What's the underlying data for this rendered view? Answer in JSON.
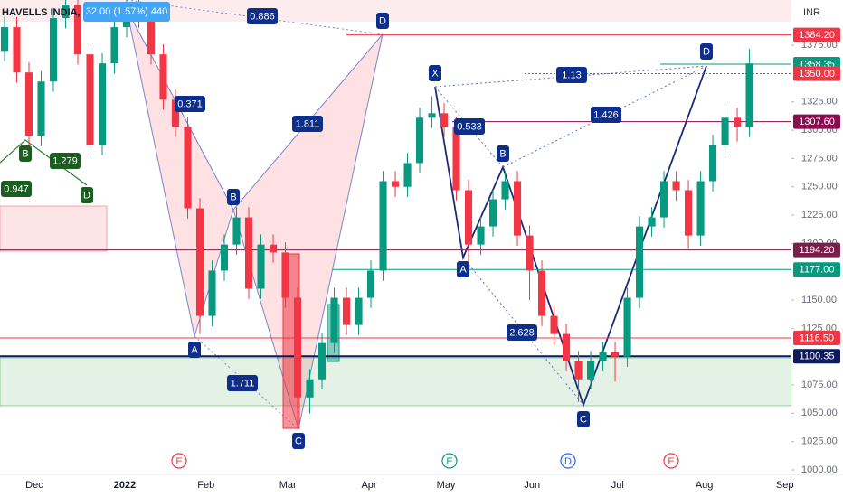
{
  "chart_data": {
    "type": "candlestick",
    "title": "HAVELLS INDIA, 1D, NSE",
    "change": "32.00 (1.57%) 440",
    "currency": "INR",
    "up_color": "#089981",
    "down_color": "#f23645",
    "xlim": [
      -0.37,
      64.44
    ],
    "ylim": [
      996,
      1415
    ],
    "xticks": [
      {
        "value": 2.44,
        "label": "Dec"
      },
      {
        "value": 9.85,
        "label": "2022"
      },
      {
        "value": 16.5,
        "label": "Feb"
      },
      {
        "value": 23.2,
        "label": "Mar"
      },
      {
        "value": 29.85,
        "label": "Apr"
      },
      {
        "value": 36.15,
        "label": "May"
      },
      {
        "value": 43.2,
        "label": "Jun"
      },
      {
        "value": 50.2,
        "label": "Jul"
      },
      {
        "value": 57.3,
        "label": "Aug"
      },
      {
        "value": 63.9,
        "label": "Sep"
      }
    ],
    "yticks": [
      {
        "value": 1000,
        "label": "1000.00"
      },
      {
        "value": 1025,
        "label": "1025.00"
      },
      {
        "value": 1050,
        "label": "1050.00"
      },
      {
        "value": 1075,
        "label": "1075.00"
      },
      {
        "value": 1125,
        "label": "1125.00"
      },
      {
        "value": 1150,
        "label": "1150.00"
      },
      {
        "value": 1200,
        "label": "1200.00"
      },
      {
        "value": 1225,
        "label": "1225.00"
      },
      {
        "value": 1250,
        "label": "1250.00"
      },
      {
        "value": 1275,
        "label": "1275.00"
      },
      {
        "value": 1300,
        "label": "1300.00"
      },
      {
        "value": 1325,
        "label": "1325.00"
      },
      {
        "value": 1375,
        "label": "1375.00"
      }
    ],
    "price_tags": [
      {
        "value": 1384.2,
        "label": "1384.20",
        "color": "#f23645"
      },
      {
        "value": 1358.35,
        "label": "1358.35",
        "color": "#089981"
      },
      {
        "value": 1350,
        "label": "1350.00",
        "color": "#f23645"
      },
      {
        "value": 1307.6,
        "label": "1307.60",
        "color": "#880e4f"
      },
      {
        "value": 1194.2,
        "label": "1194.20",
        "color": "#7b1f4a"
      },
      {
        "value": 1177,
        "label": "1177.00",
        "color": "#089981"
      },
      {
        "value": 1116.5,
        "label": "1116.50",
        "color": "#f23645"
      },
      {
        "value": 1100.35,
        "label": "1100.35",
        "color": "#0d1b5e"
      }
    ],
    "pattern_points": [
      "A",
      "B",
      "C",
      "D",
      "X",
      "A",
      "B",
      "C",
      "D",
      "B",
      "D"
    ],
    "ratios": [
      0.886,
      0.371,
      1.811,
      1.711,
      1.13,
      0.533,
      1.426,
      2.628,
      1.279,
      0.947
    ],
    "events": [
      "E",
      "E",
      "D",
      "E"
    ],
    "ohlc": [
      [
        1370,
        1400,
        1361,
        1391
      ],
      [
        1391,
        1400,
        1342,
        1351
      ],
      [
        1351,
        1360,
        1286,
        1295
      ],
      [
        1295,
        1352,
        1286,
        1343
      ],
      [
        1343,
        1408,
        1334,
        1399
      ],
      [
        1399,
        1415,
        1390,
        1411
      ],
      [
        1411,
        1415,
        1358,
        1367
      ],
      [
        1367,
        1376,
        1278,
        1287
      ],
      [
        1287,
        1368,
        1278,
        1359
      ],
      [
        1359,
        1400,
        1350,
        1391
      ],
      [
        1391,
        1415,
        1382,
        1407
      ],
      [
        1407,
        1415,
        1390,
        1399
      ],
      [
        1399,
        1408,
        1358,
        1367
      ],
      [
        1367,
        1376,
        1318,
        1327
      ],
      [
        1327,
        1336,
        1294,
        1303
      ],
      [
        1303,
        1312,
        1222,
        1231
      ],
      [
        1231,
        1240,
        1120,
        1136
      ],
      [
        1136,
        1185,
        1127,
        1176
      ],
      [
        1176,
        1208,
        1167,
        1199
      ],
      [
        1199,
        1232,
        1190,
        1223
      ],
      [
        1223,
        1232,
        1151,
        1160
      ],
      [
        1160,
        1208,
        1151,
        1199
      ],
      [
        1199,
        1208,
        1183,
        1192
      ],
      [
        1192,
        1201,
        1143,
        1152
      ],
      [
        1152,
        1161,
        1040,
        1064
      ],
      [
        1064,
        1089,
        1050,
        1080
      ],
      [
        1080,
        1121,
        1071,
        1112
      ],
      [
        1112,
        1161,
        1103,
        1152
      ],
      [
        1152,
        1161,
        1119,
        1128
      ],
      [
        1128,
        1161,
        1119,
        1152
      ],
      [
        1152,
        1185,
        1143,
        1176
      ],
      [
        1176,
        1264,
        1167,
        1255
      ],
      [
        1255,
        1264,
        1241,
        1250
      ],
      [
        1250,
        1280,
        1241,
        1271
      ],
      [
        1271,
        1320,
        1262,
        1311
      ],
      [
        1311,
        1330,
        1302,
        1315
      ],
      [
        1315,
        1324,
        1294,
        1303
      ],
      [
        1303,
        1312,
        1238,
        1247
      ],
      [
        1247,
        1256,
        1180,
        1199
      ],
      [
        1199,
        1224,
        1190,
        1215
      ],
      [
        1215,
        1248,
        1206,
        1239
      ],
      [
        1239,
        1264,
        1230,
        1255
      ],
      [
        1255,
        1264,
        1198,
        1207
      ],
      [
        1207,
        1216,
        1150,
        1176
      ],
      [
        1176,
        1185,
        1127,
        1136
      ],
      [
        1136,
        1145,
        1111,
        1120
      ],
      [
        1120,
        1129,
        1087,
        1096
      ],
      [
        1096,
        1105,
        1060,
        1080
      ],
      [
        1080,
        1105,
        1071,
        1096
      ],
      [
        1096,
        1113,
        1087,
        1104
      ],
      [
        1104,
        1113,
        1078,
        1100
      ],
      [
        1100,
        1161,
        1091,
        1152
      ],
      [
        1152,
        1224,
        1143,
        1215
      ],
      [
        1215,
        1232,
        1206,
        1223
      ],
      [
        1223,
        1264,
        1214,
        1255
      ],
      [
        1255,
        1264,
        1238,
        1247
      ],
      [
        1247,
        1256,
        1195,
        1207
      ],
      [
        1207,
        1264,
        1198,
        1255
      ],
      [
        1255,
        1296,
        1246,
        1287
      ],
      [
        1287,
        1320,
        1278,
        1311
      ],
      [
        1311,
        1320,
        1290,
        1303
      ],
      [
        1303,
        1372,
        1294,
        1359
      ]
    ]
  }
}
